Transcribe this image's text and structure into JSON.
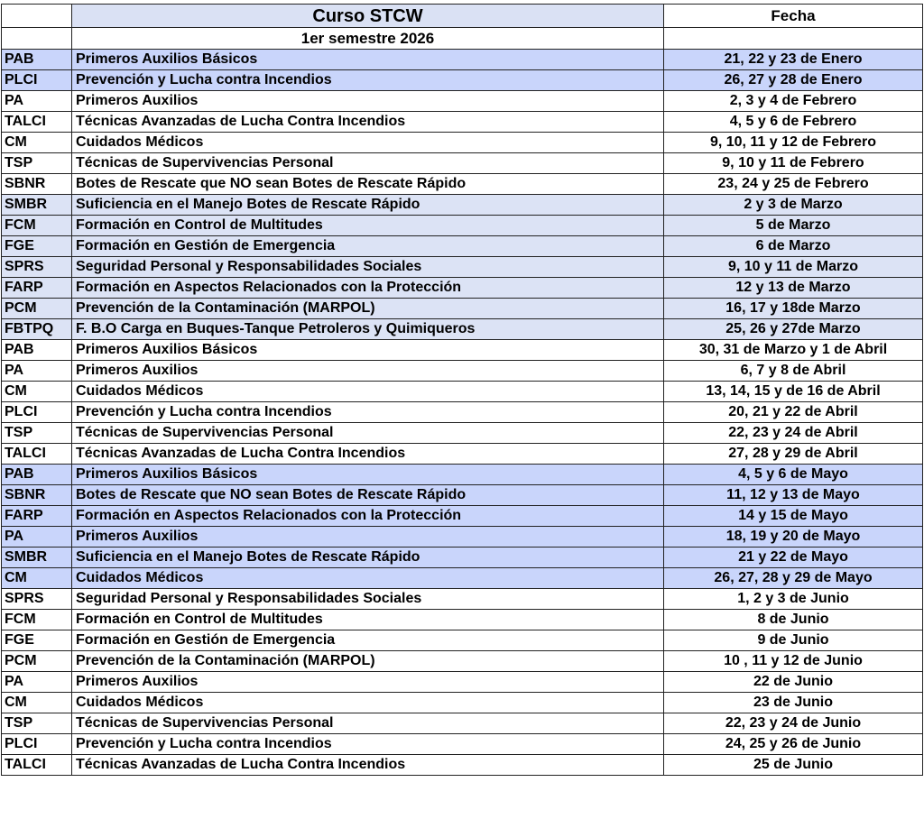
{
  "header": {
    "course_title": "Curso STCW",
    "date_title": "Fecha",
    "semester": "1er semestre 2026"
  },
  "colors": {
    "header": "#dae1f4",
    "blue": "#c9d5fb",
    "lavender": "#dce3f5"
  },
  "rows": [
    {
      "code": "PAB",
      "name": "Primeros Auxilios Básicos",
      "date": "21, 22 y 23 de Enero",
      "shade": "blue"
    },
    {
      "code": "PLCI",
      "name": "Prevención y Lucha contra Incendios",
      "date": "26, 27 y 28 de Enero",
      "shade": "blue"
    },
    {
      "code": "PA",
      "name": "Primeros Auxilios",
      "date": "2, 3 y 4 de Febrero",
      "shade": ""
    },
    {
      "code": "TALCI",
      "name": "Técnicas Avanzadas de Lucha Contra Incendios",
      "date": "4, 5 y 6 de Febrero",
      "shade": ""
    },
    {
      "code": "CM",
      "name": "Cuidados Médicos",
      "date": "9, 10, 11 y 12 de Febrero",
      "shade": ""
    },
    {
      "code": "TSP",
      "name": "Técnicas de Supervivencias Personal",
      "date": "9, 10 y 11 de Febrero",
      "shade": ""
    },
    {
      "code": "SBNR",
      "name": "Botes de Rescate que NO sean Botes de Rescate Rápido",
      "date": "23, 24 y 25 de Febrero",
      "shade": ""
    },
    {
      "code": "SMBR",
      "name": "Suficiencia en el Manejo Botes de Rescate Rápido",
      "date": "2 y 3 de Marzo",
      "shade": "lavender"
    },
    {
      "code": "FCM",
      "name": "Formación en Control de Multitudes",
      "date": "5 de Marzo",
      "shade": "lavender"
    },
    {
      "code": "FGE",
      "name": "Formación en Gestión de Emergencia",
      "date": "6 de Marzo",
      "shade": "lavender"
    },
    {
      "code": "SPRS",
      "name": "Seguridad Personal y Responsabilidades Sociales",
      "date": "9, 10 y 11 de Marzo",
      "shade": "lavender"
    },
    {
      "code": "FARP",
      "name": "Formación en Aspectos Relacionados con la Protección",
      "date": "12 y 13 de Marzo",
      "shade": "lavender"
    },
    {
      "code": "PCM",
      "name": "Prevención de la Contaminación (MARPOL)",
      "date": "16, 17 y 18de Marzo",
      "shade": "lavender"
    },
    {
      "code": "FBTPQ",
      "name": "F. B.O Carga en Buques-Tanque Petroleros y Quimiqueros",
      "date": "25, 26 y 27de Marzo",
      "shade": "lavender"
    },
    {
      "code": "PAB",
      "name": "Primeros Auxilios Básicos",
      "date": "30, 31 de Marzo y 1 de Abril",
      "shade": ""
    },
    {
      "code": "PA",
      "name": "Primeros Auxilios",
      "date": "6, 7 y 8 de Abril",
      "shade": ""
    },
    {
      "code": "CM",
      "name": "Cuidados Médicos",
      "date": "13, 14, 15 y de 16 de Abril",
      "shade": ""
    },
    {
      "code": "PLCI",
      "name": "Prevención y Lucha contra Incendios",
      "date": "20, 21 y 22 de Abril",
      "shade": ""
    },
    {
      "code": "TSP",
      "name": "Técnicas de Supervivencias Personal",
      "date": "22, 23 y 24 de Abril",
      "shade": ""
    },
    {
      "code": "TALCI",
      "name": "Técnicas Avanzadas de Lucha Contra Incendios",
      "date": "27, 28 y 29 de Abril",
      "shade": ""
    },
    {
      "code": "PAB",
      "name": "Primeros Auxilios Básicos",
      "date": "4, 5 y 6 de Mayo",
      "shade": "blue"
    },
    {
      "code": "SBNR",
      "name": "Botes de Rescate que NO sean Botes de Rescate Rápido",
      "date": "11, 12 y 13 de Mayo",
      "shade": "blue"
    },
    {
      "code": "FARP",
      "name": "Formación en Aspectos Relacionados con la Protección",
      "date": "14 y 15 de Mayo",
      "shade": "blue"
    },
    {
      "code": "PA",
      "name": "Primeros Auxilios",
      "date": "18, 19 y 20 de Mayo",
      "shade": "blue"
    },
    {
      "code": "SMBR",
      "name": "Suficiencia en el Manejo Botes de Rescate Rápido",
      "date": "21 y 22 de Mayo",
      "shade": "blue"
    },
    {
      "code": "CM",
      "name": "Cuidados Médicos",
      "date": "26, 27, 28 y 29 de Mayo",
      "shade": "blue"
    },
    {
      "code": "SPRS",
      "name": "Seguridad Personal y Responsabilidades Sociales",
      "date": "1, 2 y 3 de Junio",
      "shade": ""
    },
    {
      "code": "FCM",
      "name": "Formación en Control de Multitudes",
      "date": "8 de Junio",
      "shade": ""
    },
    {
      "code": "FGE",
      "name": "Formación en Gestión de Emergencia",
      "date": "9 de Junio",
      "shade": ""
    },
    {
      "code": "PCM",
      "name": "Prevención de la Contaminación (MARPOL)",
      "date": "10 , 11 y 12 de Junio",
      "shade": ""
    },
    {
      "code": "PA",
      "name": "Primeros Auxilios",
      "date": "22 de Junio",
      "shade": ""
    },
    {
      "code": "CM",
      "name": "Cuidados Médicos",
      "date": "23 de Junio",
      "shade": ""
    },
    {
      "code": "TSP",
      "name": "Técnicas de Supervivencias Personal",
      "date": "22, 23 y 24 de Junio",
      "shade": ""
    },
    {
      "code": "PLCI",
      "name": "Prevención y Lucha contra Incendios",
      "date": "24, 25 y 26 de Junio",
      "shade": ""
    },
    {
      "code": "TALCI",
      "name": "Técnicas Avanzadas de Lucha Contra Incendios",
      "date": "25 de Junio",
      "shade": ""
    }
  ]
}
